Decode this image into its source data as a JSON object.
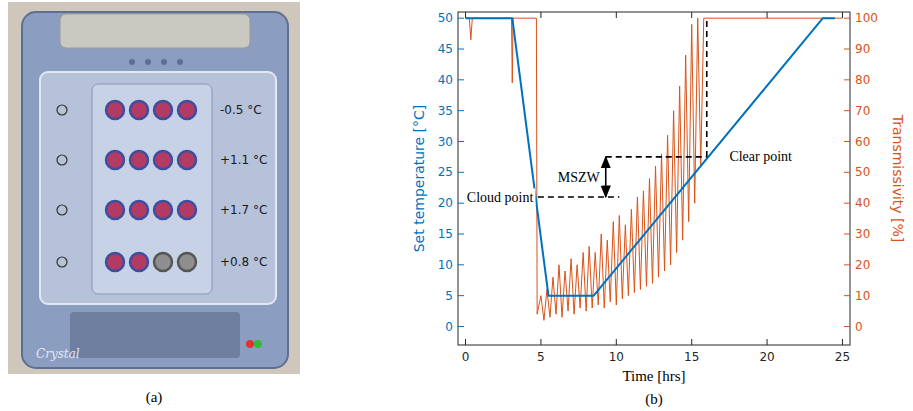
{
  "panels": [
    "(a)",
    "(b)"
  ],
  "photo": {
    "labels": [
      "-0.5 °C",
      "+1.1 °C",
      "+1.7 °C",
      "+0.8 °C"
    ],
    "brand": "Crystal"
  },
  "chart_data": {
    "type": "line",
    "x_label": "Time [hrs]",
    "y_label": "Set temperature [°C]",
    "y2_label": "Transmissivity [%]",
    "xlim": [
      -0.5,
      25.5
    ],
    "ylim": [
      -3,
      51
    ],
    "y2lim": [
      -6,
      102
    ],
    "xticks": [
      0,
      5,
      10,
      15,
      20,
      25
    ],
    "yticks": [
      0,
      5,
      10,
      15,
      20,
      25,
      30,
      35,
      40,
      45,
      50
    ],
    "y2ticks": [
      0,
      10,
      20,
      30,
      40,
      50,
      60,
      70,
      80,
      90,
      100
    ],
    "grid": false,
    "series": [
      {
        "color": "#0072bd",
        "axis": "y",
        "x": [
          0,
          3.1,
          5.5,
          8.5,
          23.7,
          24.5
        ],
        "values": [
          50,
          50,
          5,
          5,
          50,
          50
        ]
      },
      {
        "color": "#d95319",
        "axis": "y2",
        "x": [
          0,
          0.25,
          0.35,
          0.45,
          3.05,
          3.1,
          3.15,
          4.7,
          4.75,
          5.0,
          5.2,
          5.4,
          5.6,
          5.8,
          6.0,
          6.2,
          6.4,
          6.6,
          6.8,
          7.0,
          7.2,
          7.4,
          7.6,
          7.8,
          8.0,
          8.2,
          8.4,
          8.6,
          8.8,
          9.0,
          9.2,
          9.4,
          9.6,
          9.8,
          10.0,
          10.2,
          10.4,
          10.6,
          10.8,
          11.0,
          11.2,
          11.4,
          11.6,
          11.8,
          12.0,
          12.2,
          12.4,
          12.6,
          12.8,
          13.0,
          13.2,
          13.4,
          13.6,
          13.8,
          14.0,
          14.2,
          14.4,
          14.6,
          14.8,
          15.0,
          15.2,
          15.4,
          15.6,
          15.8,
          16.0,
          25.0
        ],
        "values": [
          100,
          100,
          93,
          100,
          100,
          79,
          100,
          100,
          4,
          10,
          2,
          12,
          3,
          16,
          4,
          20,
          3,
          18,
          5,
          22,
          4,
          20,
          6,
          24,
          5,
          26,
          6,
          24,
          7,
          30,
          6,
          28,
          8,
          34,
          7,
          36,
          9,
          33,
          10,
          38,
          11,
          42,
          12,
          44,
          13,
          48,
          14,
          52,
          16,
          56,
          18,
          62,
          20,
          70,
          24,
          78,
          28,
          88,
          34,
          98,
          40,
          100,
          52,
          100,
          100,
          100
        ]
      }
    ],
    "guides": [
      {
        "x": [
          4.8,
          10.2
        ],
        "y": [
          21,
          21
        ],
        "line_style": "dashed"
      },
      {
        "x": [
          9.3,
          16
        ],
        "y": [
          27.5,
          27.5
        ],
        "line_style": "dashed"
      },
      {
        "x": [
          16,
          16
        ],
        "y": [
          27.5,
          50
        ],
        "line_style": "dashed"
      },
      {
        "x": [
          9.3,
          9.3
        ],
        "y": [
          21,
          27.5
        ],
        "line_style": "double-arrow"
      }
    ],
    "annotations": [
      {
        "text": "Cloud point",
        "x": 4.5,
        "y": 21,
        "align": "end"
      },
      {
        "text": "Clear point",
        "x": 17.5,
        "y": 27.5,
        "align": "start"
      },
      {
        "text": "MSZW",
        "x": 8.9,
        "y": 24.2,
        "align": "end"
      }
    ]
  }
}
